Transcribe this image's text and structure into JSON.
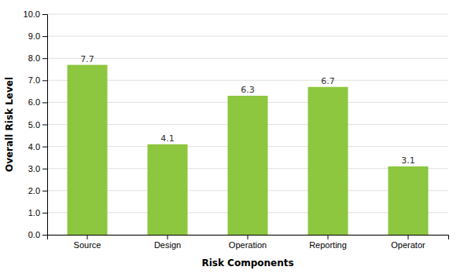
{
  "chart_data": {
    "type": "bar",
    "categories": [
      "Source",
      "Design",
      "Operation",
      "Reporting",
      "Operator"
    ],
    "values": [
      7.7,
      4.1,
      6.3,
      6.7,
      3.1
    ],
    "color": "#8DC63F",
    "xlabel": "Risk Components",
    "ylabel": "Overall Risk Level",
    "ylim": [
      0,
      10.0
    ],
    "yticks": [
      {
        "value": 0.0,
        "label": "0.0"
      },
      {
        "value": 1.0,
        "label": "1.0"
      },
      {
        "value": 2.0,
        "label": "2.0"
      },
      {
        "value": 3.0,
        "label": "3.0"
      },
      {
        "value": 4.0,
        "label": "4.0"
      },
      {
        "value": 5.0,
        "label": "5.0"
      },
      {
        "value": 6.0,
        "label": "6.0"
      },
      {
        "value": 7.0,
        "label": "7.0"
      },
      {
        "value": 8.0,
        "label": "8.0"
      },
      {
        "value": 9.0,
        "label": "9.0"
      },
      {
        "value": 10.0,
        "label": "10.0"
      }
    ],
    "grid": true,
    "data_labels": true
  }
}
